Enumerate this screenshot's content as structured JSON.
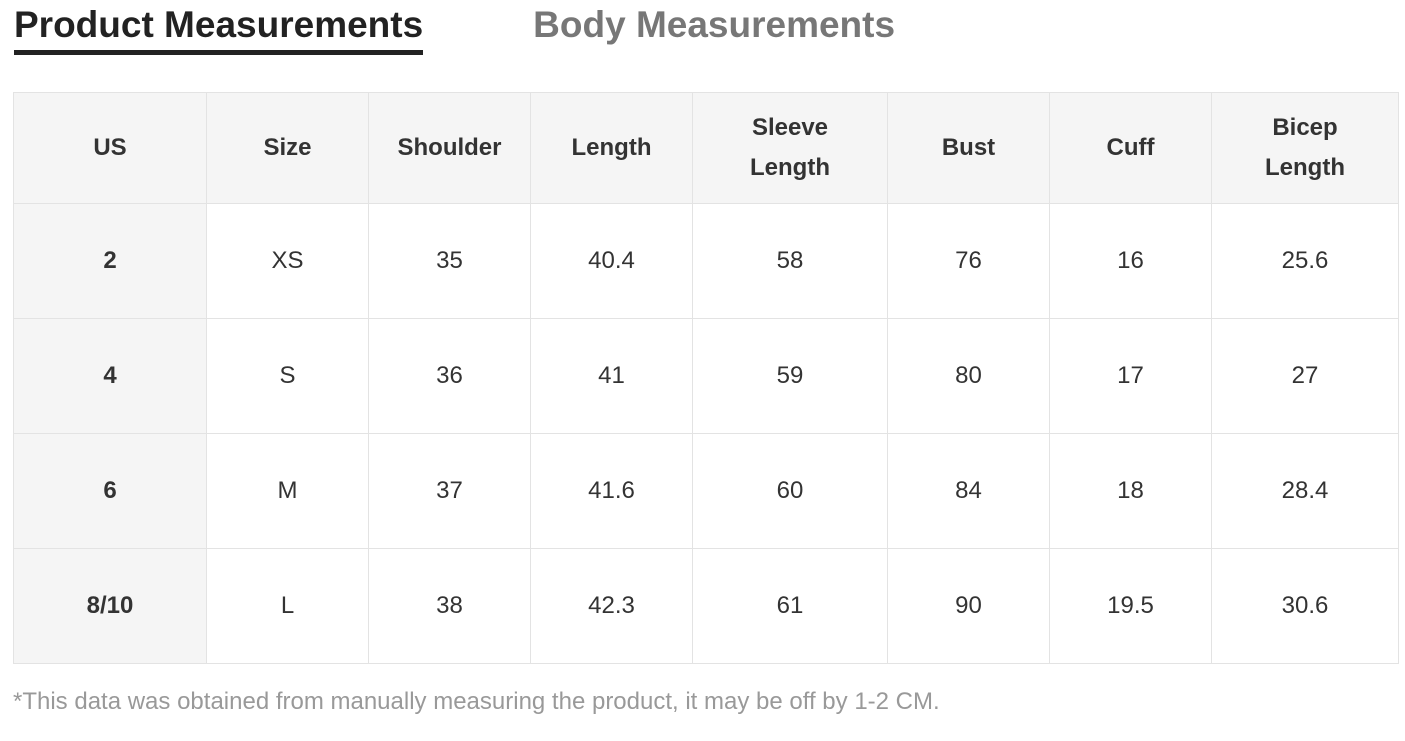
{
  "tabs": [
    {
      "label": "Product Measurements",
      "active": true
    },
    {
      "label": "Body Measurements",
      "active": false
    }
  ],
  "table": {
    "header": [
      "US",
      "Size",
      "Shoulder",
      "Length",
      "Sleeve Length",
      "Bust",
      "Cuff",
      "Bicep Length"
    ],
    "rows": [
      [
        "2",
        "XS",
        "35",
        "40.4",
        "58",
        "76",
        "16",
        "25.6"
      ],
      [
        "4",
        "S",
        "36",
        "41",
        "59",
        "80",
        "17",
        "27"
      ],
      [
        "6",
        "M",
        "37",
        "41.6",
        "60",
        "84",
        "18",
        "28.4"
      ],
      [
        "8/10",
        "L",
        "38",
        "42.3",
        "61",
        "90",
        "19.5",
        "30.6"
      ]
    ]
  },
  "note": "*This data was obtained from manually measuring the product, it may be off by 1-2 CM."
}
